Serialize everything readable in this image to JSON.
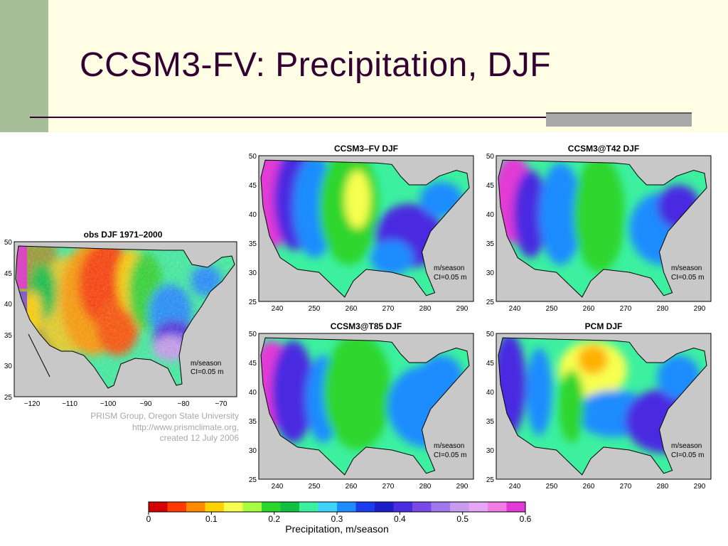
{
  "slide": {
    "title": "CCSM3-FV: Precipitation, DJF"
  },
  "maps": [
    {
      "id": "obs",
      "title": "obs DJF 1971–2000",
      "yticks": [
        "50",
        "45",
        "40",
        "35",
        "30",
        "25"
      ],
      "xticks": [
        "−120",
        "−110",
        "−100",
        "−90",
        "−80",
        "−70"
      ],
      "units": "m/season",
      "ci": "CI=0.05 m"
    },
    {
      "id": "fv",
      "title": "CCSM3–FV DJF",
      "yticks": [
        "50",
        "45",
        "40",
        "35",
        "30",
        "25"
      ],
      "xticks": [
        "240",
        "250",
        "260",
        "270",
        "280",
        "290"
      ],
      "units": "m/season",
      "ci": "CI=0.05 m"
    },
    {
      "id": "t42",
      "title": "CCSM3@T42 DJF",
      "yticks": [
        "50",
        "45",
        "40",
        "35",
        "30",
        "25"
      ],
      "xticks": [
        "240",
        "250",
        "260",
        "270",
        "280",
        "290"
      ],
      "units": "m/season",
      "ci": "CI=0.05 m"
    },
    {
      "id": "t85",
      "title": "CCSM3@T85 DJF",
      "yticks": [
        "50",
        "45",
        "40",
        "35",
        "30",
        "25"
      ],
      "xticks": [
        "240",
        "250",
        "260",
        "270",
        "280",
        "290"
      ],
      "units": "m/season",
      "ci": "CI=0.05 m"
    },
    {
      "id": "pcm",
      "title": "PCM DJF",
      "yticks": [
        "50",
        "45",
        "40",
        "35",
        "30",
        "25"
      ],
      "xticks": [
        "240",
        "250",
        "260",
        "270",
        "280",
        "290"
      ],
      "units": "m/season",
      "ci": "CI=0.05 m"
    }
  ],
  "credit": {
    "line1": "PRISM Group, Oregon State University",
    "line2": "http://www.prismclimate.org,",
    "line3": "created 12 July 2006"
  },
  "colorbar": {
    "ticks": [
      "0",
      "0.1",
      "0.2",
      "0.3",
      "0.4",
      "0.5",
      "0.6"
    ],
    "label": "Precipitation, m/season",
    "colors": [
      "#d40000",
      "#ff3a00",
      "#ff8a00",
      "#ffd200",
      "#f7ff50",
      "#a8ff40",
      "#2dd62d",
      "#11c040",
      "#3cf0a0",
      "#3ed2ff",
      "#1f8cff",
      "#1c3cf0",
      "#1c1cc8",
      "#4a2ce0",
      "#7a4ae6",
      "#a078ee",
      "#c89bf0",
      "#e6a6f5",
      "#f07ee6",
      "#e23ad6"
    ]
  },
  "palette": {
    "land_mask": "#c8c8c8",
    "dry": "#f7ff50",
    "mid": "#2dd62d",
    "wet": "#1f8cff",
    "very_wet": "#4a2ce0",
    "extreme": "#e23ad6",
    "title_color": "#330033"
  }
}
